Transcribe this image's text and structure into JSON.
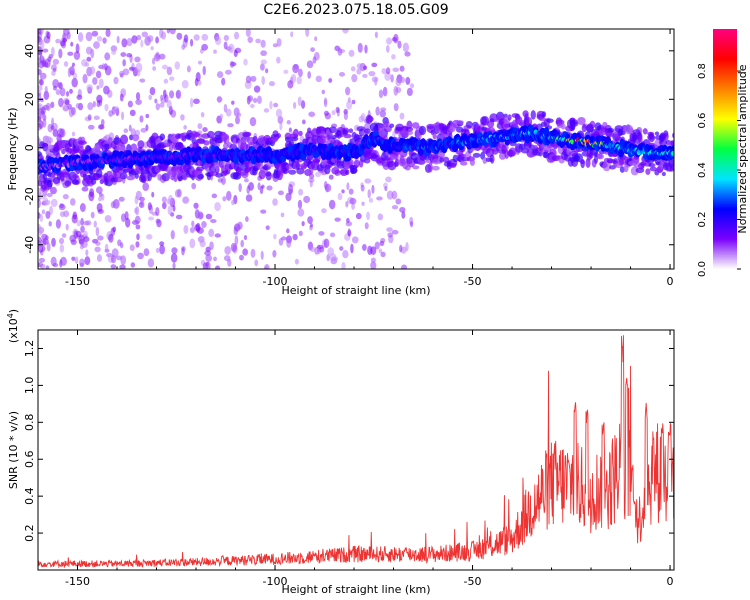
{
  "title": "C2E6.2023.075.18.05.G09",
  "chart_data": [
    {
      "type": "heatmap",
      "xlabel": "Height of straight line (km)",
      "ylabel": "Frequency (Hz)",
      "xlim": [
        -160,
        1
      ],
      "ylim": [
        -50,
        49
      ],
      "x_ticks": [
        -150,
        -100,
        -50,
        0
      ],
      "y_ticks": [
        -40,
        -20,
        0,
        20,
        40
      ],
      "colorbar": {
        "label": "Normalized spectral amplitude",
        "range": [
          0,
          0.97
        ],
        "ticks": [
          0.0,
          0.2,
          0.4,
          0.6,
          0.8
        ],
        "colors": [
          "#ffffff",
          "#7a00ff",
          "#0000ff",
          "#00e5ff",
          "#00ff40",
          "#ffff00",
          "#ff8000",
          "#ff0000",
          "#ff0080"
        ]
      },
      "ridge": {
        "description_points": [
          [
            -160,
            -8
          ],
          [
            -150,
            -6
          ],
          [
            -140,
            -5
          ],
          [
            -130,
            -4
          ],
          [
            -120,
            -3
          ],
          [
            -110,
            -3
          ],
          [
            -100,
            -3
          ],
          [
            -90,
            -1
          ],
          [
            -80,
            -2
          ],
          [
            -75,
            4
          ],
          [
            -70,
            1
          ],
          [
            -60,
            0
          ],
          [
            -50,
            3
          ],
          [
            -40,
            5
          ],
          [
            -35,
            6
          ],
          [
            -30,
            4
          ],
          [
            -25,
            3
          ],
          [
            -20,
            2
          ],
          [
            -15,
            1
          ],
          [
            -10,
            -1
          ],
          [
            -5,
            -2
          ],
          [
            0,
            -2
          ]
        ],
        "peak_amplitude": 0.95,
        "peak_location": [
          -22,
          2
        ]
      },
      "grid": false
    },
    {
      "type": "line",
      "xlabel": "Height of straight line (km)",
      "ylabel": "SNR (10 * v/v)",
      "y_multiplier": "(x10",
      "y_multiplier_exp": "4",
      "y_multiplier_close": ")",
      "xlim": [
        -160,
        1
      ],
      "ylim": [
        0,
        1.3
      ],
      "x_ticks": [
        -150,
        -100,
        -50,
        0
      ],
      "y_ticks": [
        0.2,
        0.4,
        0.6,
        0.8,
        1.0,
        1.2
      ],
      "series_color": "#ee3333",
      "envelope": [
        [
          -160,
          0.04
        ],
        [
          -140,
          0.04
        ],
        [
          -120,
          0.05
        ],
        [
          -100,
          0.07
        ],
        [
          -80,
          0.1
        ],
        [
          -60,
          0.1
        ],
        [
          -50,
          0.12
        ],
        [
          -40,
          0.2
        ],
        [
          -35,
          0.4
        ],
        [
          -30,
          0.55
        ],
        [
          -25,
          0.55
        ],
        [
          -20,
          0.5
        ],
        [
          -15,
          0.55
        ],
        [
          -12,
          0.7
        ],
        [
          -10,
          0.6
        ],
        [
          -8,
          0.3
        ],
        [
          -6,
          0.5
        ],
        [
          -4,
          0.65
        ],
        [
          -2,
          0.6
        ],
        [
          0,
          0.62
        ]
      ],
      "spikes": [
        [
          -24,
          0.93
        ],
        [
          -21,
          0.88
        ],
        [
          -17,
          0.82
        ],
        [
          -12,
          1.28
        ],
        [
          -11,
          1.05
        ],
        [
          -9,
          0.4
        ],
        [
          -6,
          0.95
        ],
        [
          -2,
          0.85
        ],
        [
          0,
          0.8
        ]
      ],
      "grid": false
    }
  ]
}
